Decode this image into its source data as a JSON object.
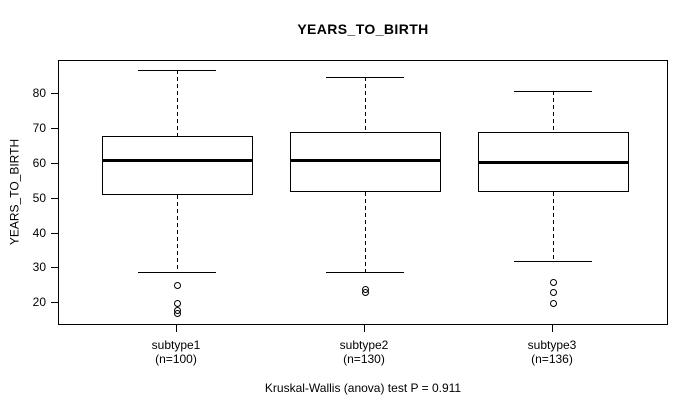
{
  "chart_data": {
    "type": "boxplot",
    "title": "YEARS_TO_BIRTH",
    "ylabel": "YEARS_TO_BIRTH",
    "caption": "Kruskal-Wallis (anova) test P = 0.911",
    "y_ticks": [
      20,
      30,
      40,
      50,
      60,
      70,
      80
    ],
    "ylim": [
      13.5,
      89.5
    ],
    "grid": false,
    "legend": "none",
    "line_color": "#000000",
    "box_fill": "#ffffff",
    "background": "#ffffff",
    "groups": [
      {
        "label": "subtype1",
        "sublabel": "(n=100)",
        "n": 100,
        "whisker_low": 29,
        "q1": 51,
        "median": 61,
        "q3": 68,
        "whisker_high": 87,
        "outliers": [
          25,
          20,
          18,
          17
        ]
      },
      {
        "label": "subtype2",
        "sublabel": "(n=130)",
        "n": 130,
        "whisker_low": 29,
        "q1": 52,
        "median": 61,
        "q3": 69,
        "whisker_high": 85,
        "outliers": [
          24,
          23
        ]
      },
      {
        "label": "subtype3",
        "sublabel": "(n=136)",
        "n": 136,
        "whisker_low": 32,
        "q1": 52,
        "median": 60.5,
        "q3": 69,
        "whisker_high": 81,
        "outliers": [
          26,
          23,
          20
        ]
      }
    ]
  }
}
